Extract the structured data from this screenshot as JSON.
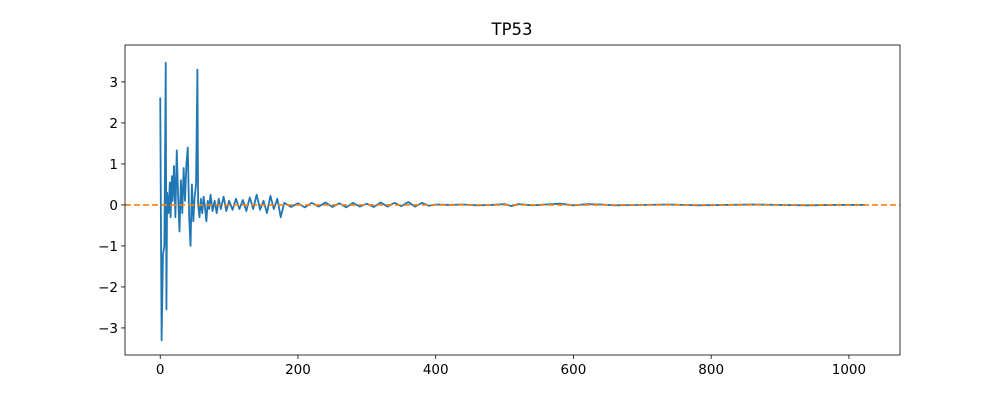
{
  "chart_data": {
    "type": "line",
    "title": "TP53",
    "x": [
      0,
      2,
      4,
      6,
      8,
      9,
      10,
      12,
      14,
      15,
      17,
      18,
      20,
      22,
      24,
      26,
      28,
      30,
      32,
      34,
      36,
      38,
      40,
      42,
      44,
      46,
      48,
      50,
      52,
      54,
      55,
      57,
      59,
      61,
      63,
      65,
      67,
      69,
      71,
      73,
      76,
      79,
      82,
      85,
      88,
      92,
      96,
      100,
      105,
      110,
      115,
      120,
      125,
      130,
      135,
      140,
      145,
      150,
      155,
      160,
      165,
      170,
      175,
      180,
      190,
      200,
      210,
      220,
      230,
      240,
      250,
      260,
      270,
      280,
      290,
      300,
      310,
      320,
      330,
      340,
      350,
      360,
      370,
      380,
      390,
      400,
      420,
      440,
      460,
      480,
      500,
      510,
      520,
      540,
      560,
      580,
      600,
      620,
      640,
      660,
      700,
      740,
      780,
      820,
      860,
      900,
      940,
      980,
      1023
    ],
    "series": [
      {
        "color": "#1f77b4",
        "values": [
          2.62,
          -3.3,
          -1.2,
          -1.0,
          3.47,
          -2.55,
          0.3,
          -0.2,
          0.55,
          -0.3,
          0.7,
          0.1,
          0.95,
          -0.3,
          1.33,
          0.2,
          -0.65,
          0.6,
          -0.2,
          0.9,
          0.1,
          1.0,
          1.4,
          -0.3,
          -1.0,
          0.5,
          -0.4,
          0.2,
          0.5,
          3.3,
          0.0,
          -0.3,
          0.15,
          -0.2,
          0.2,
          -0.05,
          -0.4,
          0.1,
          -0.1,
          0.25,
          -0.15,
          0.1,
          -0.2,
          0.15,
          -0.1,
          0.2,
          -0.15,
          0.1,
          -0.12,
          0.15,
          -0.1,
          0.12,
          -0.15,
          0.18,
          -0.1,
          0.25,
          -0.12,
          0.1,
          -0.2,
          0.22,
          -0.1,
          0.15,
          -0.3,
          0.05,
          -0.05,
          0.04,
          -0.06,
          0.05,
          -0.04,
          0.06,
          -0.05,
          0.04,
          -0.06,
          0.05,
          -0.04,
          0.03,
          -0.05,
          0.06,
          -0.04,
          0.05,
          -0.03,
          0.07,
          -0.04,
          0.05,
          -0.02,
          0.01,
          0.0,
          0.01,
          -0.01,
          0.0,
          0.02,
          -0.03,
          0.02,
          -0.01,
          0.01,
          0.03,
          -0.01,
          0.02,
          0.01,
          -0.01,
          0.0,
          0.01,
          -0.01,
          0.0,
          0.01,
          0.0,
          -0.01,
          0.0,
          0.0
        ]
      }
    ],
    "reference_line": {
      "value": 0,
      "color": "#ff7f0e"
    },
    "xlim": [
      -51.15,
      1074.15
    ],
    "xticks": [
      0,
      200,
      400,
      600,
      800,
      1000
    ],
    "ylim": [
      -3.66,
      3.9
    ],
    "yticks": [
      {
        "value": -3,
        "label": "−3"
      },
      {
        "value": -2,
        "label": "−2"
      },
      {
        "value": -1,
        "label": "−1"
      },
      0,
      1,
      2,
      3
    ]
  }
}
